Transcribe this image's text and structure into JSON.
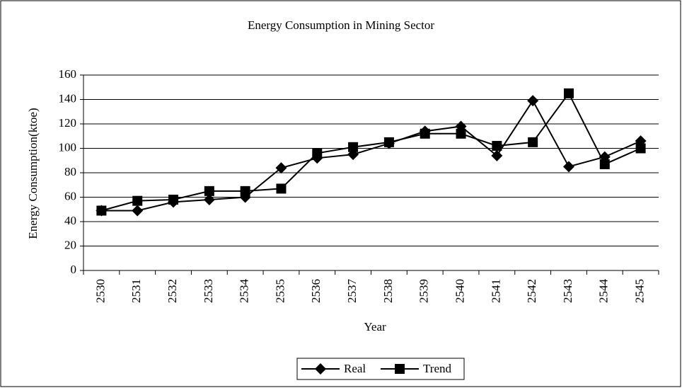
{
  "chart_data": {
    "type": "line",
    "title": "Energy Consumption in Mining Sector",
    "x_label": "Year",
    "y_label": "Energy Consumption(ktoe)",
    "categories": [
      "2530",
      "2531",
      "2532",
      "2533",
      "2534",
      "2535",
      "2536",
      "2537",
      "2538",
      "2539",
      "2540",
      "2541",
      "2542",
      "2543",
      "2544",
      "2545"
    ],
    "series": [
      {
        "name": "Real",
        "color": "#000000",
        "marker": "diamond",
        "values": [
          49,
          49,
          56,
          58,
          60,
          84,
          92,
          95,
          104,
          114,
          118,
          94,
          139,
          85,
          93,
          106
        ]
      },
      {
        "name": "Trend",
        "color": "#000000",
        "marker": "square",
        "values": [
          49,
          57,
          58,
          65,
          65,
          67,
          96,
          101,
          105,
          112,
          112,
          102,
          105,
          145,
          87,
          100
        ]
      }
    ],
    "ylim": [
      0,
      160
    ],
    "yticks": [
      0,
      20,
      40,
      60,
      80,
      100,
      120,
      140,
      160
    ],
    "grid": true,
    "legend": "bottom"
  }
}
